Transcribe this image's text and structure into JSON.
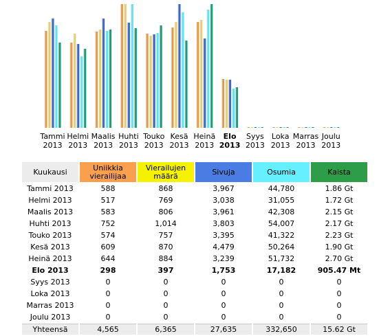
{
  "chart_data": {
    "type": "bar",
    "categories": [
      {
        "month": "Tammi",
        "year": "2013",
        "bold": false
      },
      {
        "month": "Helmi",
        "year": "2013",
        "bold": false
      },
      {
        "month": "Maalis",
        "year": "2013",
        "bold": false
      },
      {
        "month": "Huhti",
        "year": "2013",
        "bold": false
      },
      {
        "month": "Touko",
        "year": "2013",
        "bold": false
      },
      {
        "month": "Kesä",
        "year": "2013",
        "bold": false
      },
      {
        "month": "Heinä",
        "year": "2013",
        "bold": false
      },
      {
        "month": "Elo",
        "year": "2013",
        "bold": true
      },
      {
        "month": "Syys",
        "year": "2013",
        "bold": false
      },
      {
        "month": "Loka",
        "year": "2013",
        "bold": false
      },
      {
        "month": "Marras",
        "year": "2013",
        "bold": false
      },
      {
        "month": "Joulu",
        "year": "2013",
        "bold": false
      }
    ],
    "series": [
      {
        "name": "Uniikkia vierailijaa",
        "color": "#e59a4a",
        "values": [
          588,
          517,
          583,
          752,
          574,
          609,
          644,
          298,
          0,
          0,
          0,
          0
        ]
      },
      {
        "name": "Vierailujen määrä",
        "color": "#e3cf72",
        "values": [
          868,
          769,
          806,
          1014,
          757,
          870,
          884,
          397,
          0,
          0,
          0,
          0
        ]
      },
      {
        "name": "Sivuja",
        "color": "#3a66cf",
        "values": [
          3967,
          3038,
          3961,
          3803,
          3395,
          4479,
          3239,
          1753,
          0,
          0,
          0,
          0
        ]
      },
      {
        "name": "Osumia",
        "color": "#5fe3ee",
        "values": [
          44780,
          31055,
          42308,
          54007,
          41322,
          50264,
          51732,
          17182,
          0,
          0,
          0,
          0
        ]
      },
      {
        "name": "Kaista",
        "color": "#1f9a72",
        "values": [
          1.86,
          1.72,
          2.15,
          2.17,
          2.23,
          1.9,
          2.7,
          0.88,
          0,
          0,
          0,
          0
        ]
      }
    ]
  },
  "table": {
    "headers": {
      "month": "Kuukausi",
      "unique": "Uniikkia vierailijaa",
      "visits": "Vierailujen määrä",
      "pages": "Sivuja",
      "hits": "Osumia",
      "bandwidth": "Kaista"
    },
    "rows": [
      {
        "month": "Tammi 2013",
        "unique": "588",
        "visits": "868",
        "pages": "3,967",
        "hits": "44,780",
        "bandwidth": "1.86 Gt"
      },
      {
        "month": "Helmi 2013",
        "unique": "517",
        "visits": "769",
        "pages": "3,038",
        "hits": "31,055",
        "bandwidth": "1.72 Gt"
      },
      {
        "month": "Maalis 2013",
        "unique": "583",
        "visits": "806",
        "pages": "3,961",
        "hits": "42,308",
        "bandwidth": "2.15 Gt"
      },
      {
        "month": "Huhti 2013",
        "unique": "752",
        "visits": "1,014",
        "pages": "3,803",
        "hits": "54,007",
        "bandwidth": "2.17 Gt"
      },
      {
        "month": "Touko 2013",
        "unique": "574",
        "visits": "757",
        "pages": "3,395",
        "hits": "41,322",
        "bandwidth": "2.23 Gt"
      },
      {
        "month": "Kesä 2013",
        "unique": "609",
        "visits": "870",
        "pages": "4,479",
        "hits": "50,264",
        "bandwidth": "1.90 Gt"
      },
      {
        "month": "Heinä 2013",
        "unique": "644",
        "visits": "884",
        "pages": "3,239",
        "hits": "51,732",
        "bandwidth": "2.70 Gt"
      },
      {
        "month": "Elo 2013",
        "unique": "298",
        "visits": "397",
        "pages": "1,753",
        "hits": "17,182",
        "bandwidth": "905.47 Mt"
      },
      {
        "month": "Syys 2013",
        "unique": "0",
        "visits": "0",
        "pages": "0",
        "hits": "0",
        "bandwidth": "0"
      },
      {
        "month": "Loka 2013",
        "unique": "0",
        "visits": "0",
        "pages": "0",
        "hits": "0",
        "bandwidth": "0"
      },
      {
        "month": "Marras 2013",
        "unique": "0",
        "visits": "0",
        "pages": "0",
        "hits": "0",
        "bandwidth": "0"
      },
      {
        "month": "Joulu 2013",
        "unique": "0",
        "visits": "0",
        "pages": "0",
        "hits": "0",
        "bandwidth": "0"
      }
    ],
    "total": {
      "month": "Yhteensä",
      "unique": "4,565",
      "visits": "6,365",
      "pages": "27,635",
      "hits": "332,650",
      "bandwidth": "15.62 Gt"
    }
  },
  "current_month": "Elo 2013"
}
